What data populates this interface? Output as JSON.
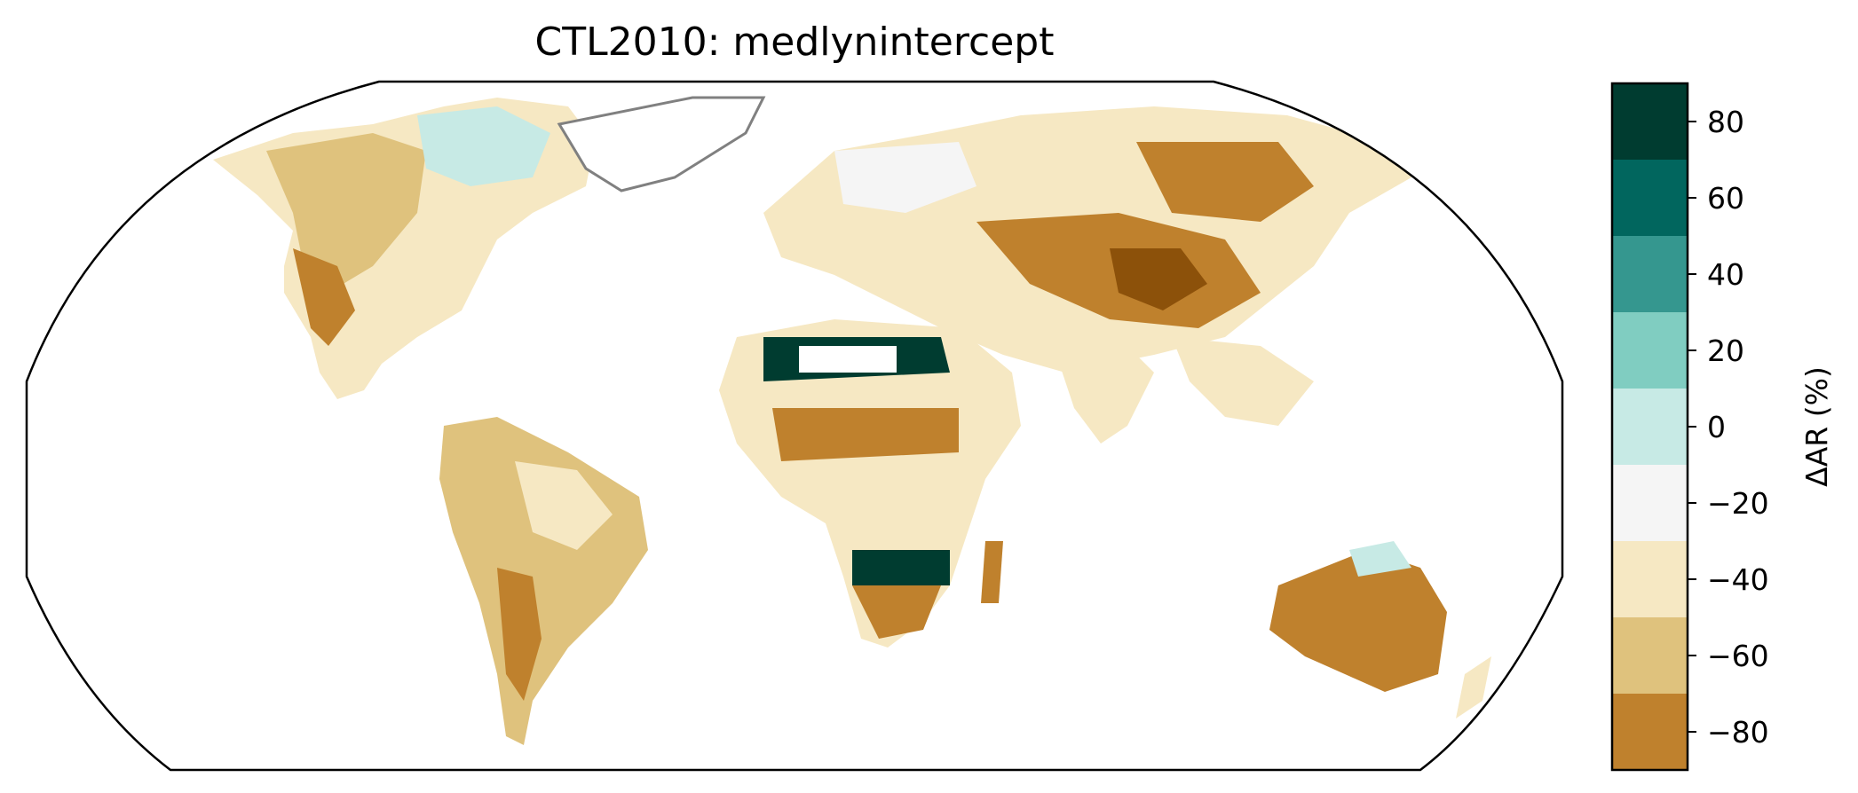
{
  "title": "CTL2010: medlynintercept",
  "colorbar": {
    "label": "ΔAR (%)",
    "ticks": [
      80,
      60,
      40,
      20,
      0,
      -20,
      -40,
      -60,
      -80
    ],
    "tick_labels": [
      "80",
      "60",
      "40",
      "20",
      "0",
      "−20",
      "−40",
      "−60",
      "−80"
    ],
    "range": [
      -90,
      90
    ],
    "bins": [
      {
        "from": 70,
        "to": 90,
        "color": "#003c30"
      },
      {
        "from": 50,
        "to": 70,
        "color": "#01665e"
      },
      {
        "from": 30,
        "to": 50,
        "color": "#35978f"
      },
      {
        "from": 10,
        "to": 30,
        "color": "#80cdc1"
      },
      {
        "from": -10,
        "to": 10,
        "color": "#c7eae5"
      },
      {
        "from": -30,
        "to": -10,
        "color": "#f5f5f5"
      },
      {
        "from": -50,
        "to": -30,
        "color": "#f6e8c3"
      },
      {
        "from": -70,
        "to": -50,
        "color": "#dfc27d"
      },
      {
        "from": -90,
        "to": -70,
        "color": "#bf812d"
      }
    ]
  },
  "colors": {
    "coastline": "#808080",
    "borders": "#c8c8c8",
    "frame": "#000000",
    "ocean": "#ffffff"
  },
  "map": {
    "projection": "Robinson",
    "layers": [
      "gridded land cells",
      "coastlines",
      "country borders"
    ]
  }
}
